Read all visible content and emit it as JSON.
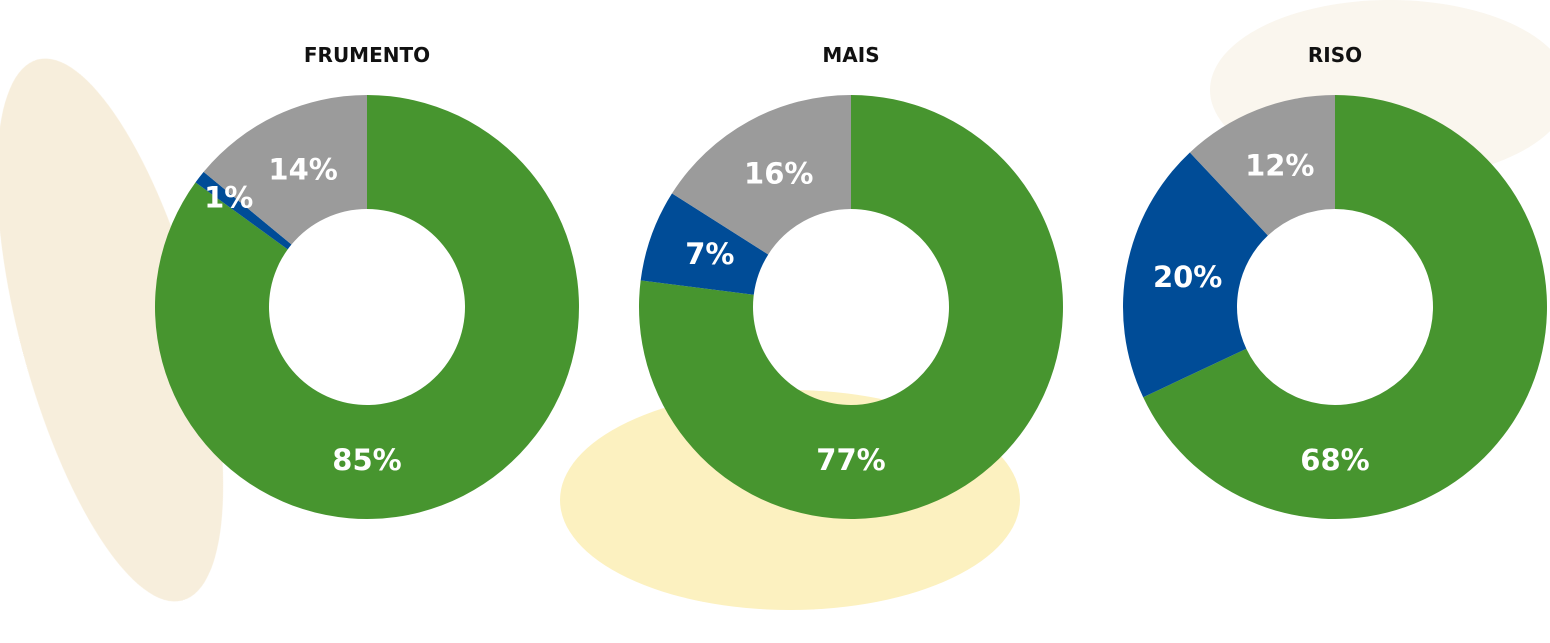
{
  "chart_data": [
    {
      "type": "donut",
      "title": "FRUMENTO",
      "values": [
        85,
        1,
        14
      ],
      "value_labels": [
        "85%",
        "1%",
        "14%"
      ],
      "colors": [
        "#47952f",
        "#004c97",
        "#9b9b9b"
      ]
    },
    {
      "type": "donut",
      "title": "MAIS",
      "values": [
        77,
        7,
        16
      ],
      "value_labels": [
        "77%",
        "7%",
        "16%"
      ],
      "colors": [
        "#47952f",
        "#004c97",
        "#9b9b9b"
      ]
    },
    {
      "type": "donut",
      "title": "RISO",
      "values": [
        68,
        20,
        12
      ],
      "value_labels": [
        "68%",
        "20%",
        "12%"
      ],
      "colors": [
        "#47952f",
        "#004c97",
        "#9b9b9b"
      ]
    }
  ]
}
